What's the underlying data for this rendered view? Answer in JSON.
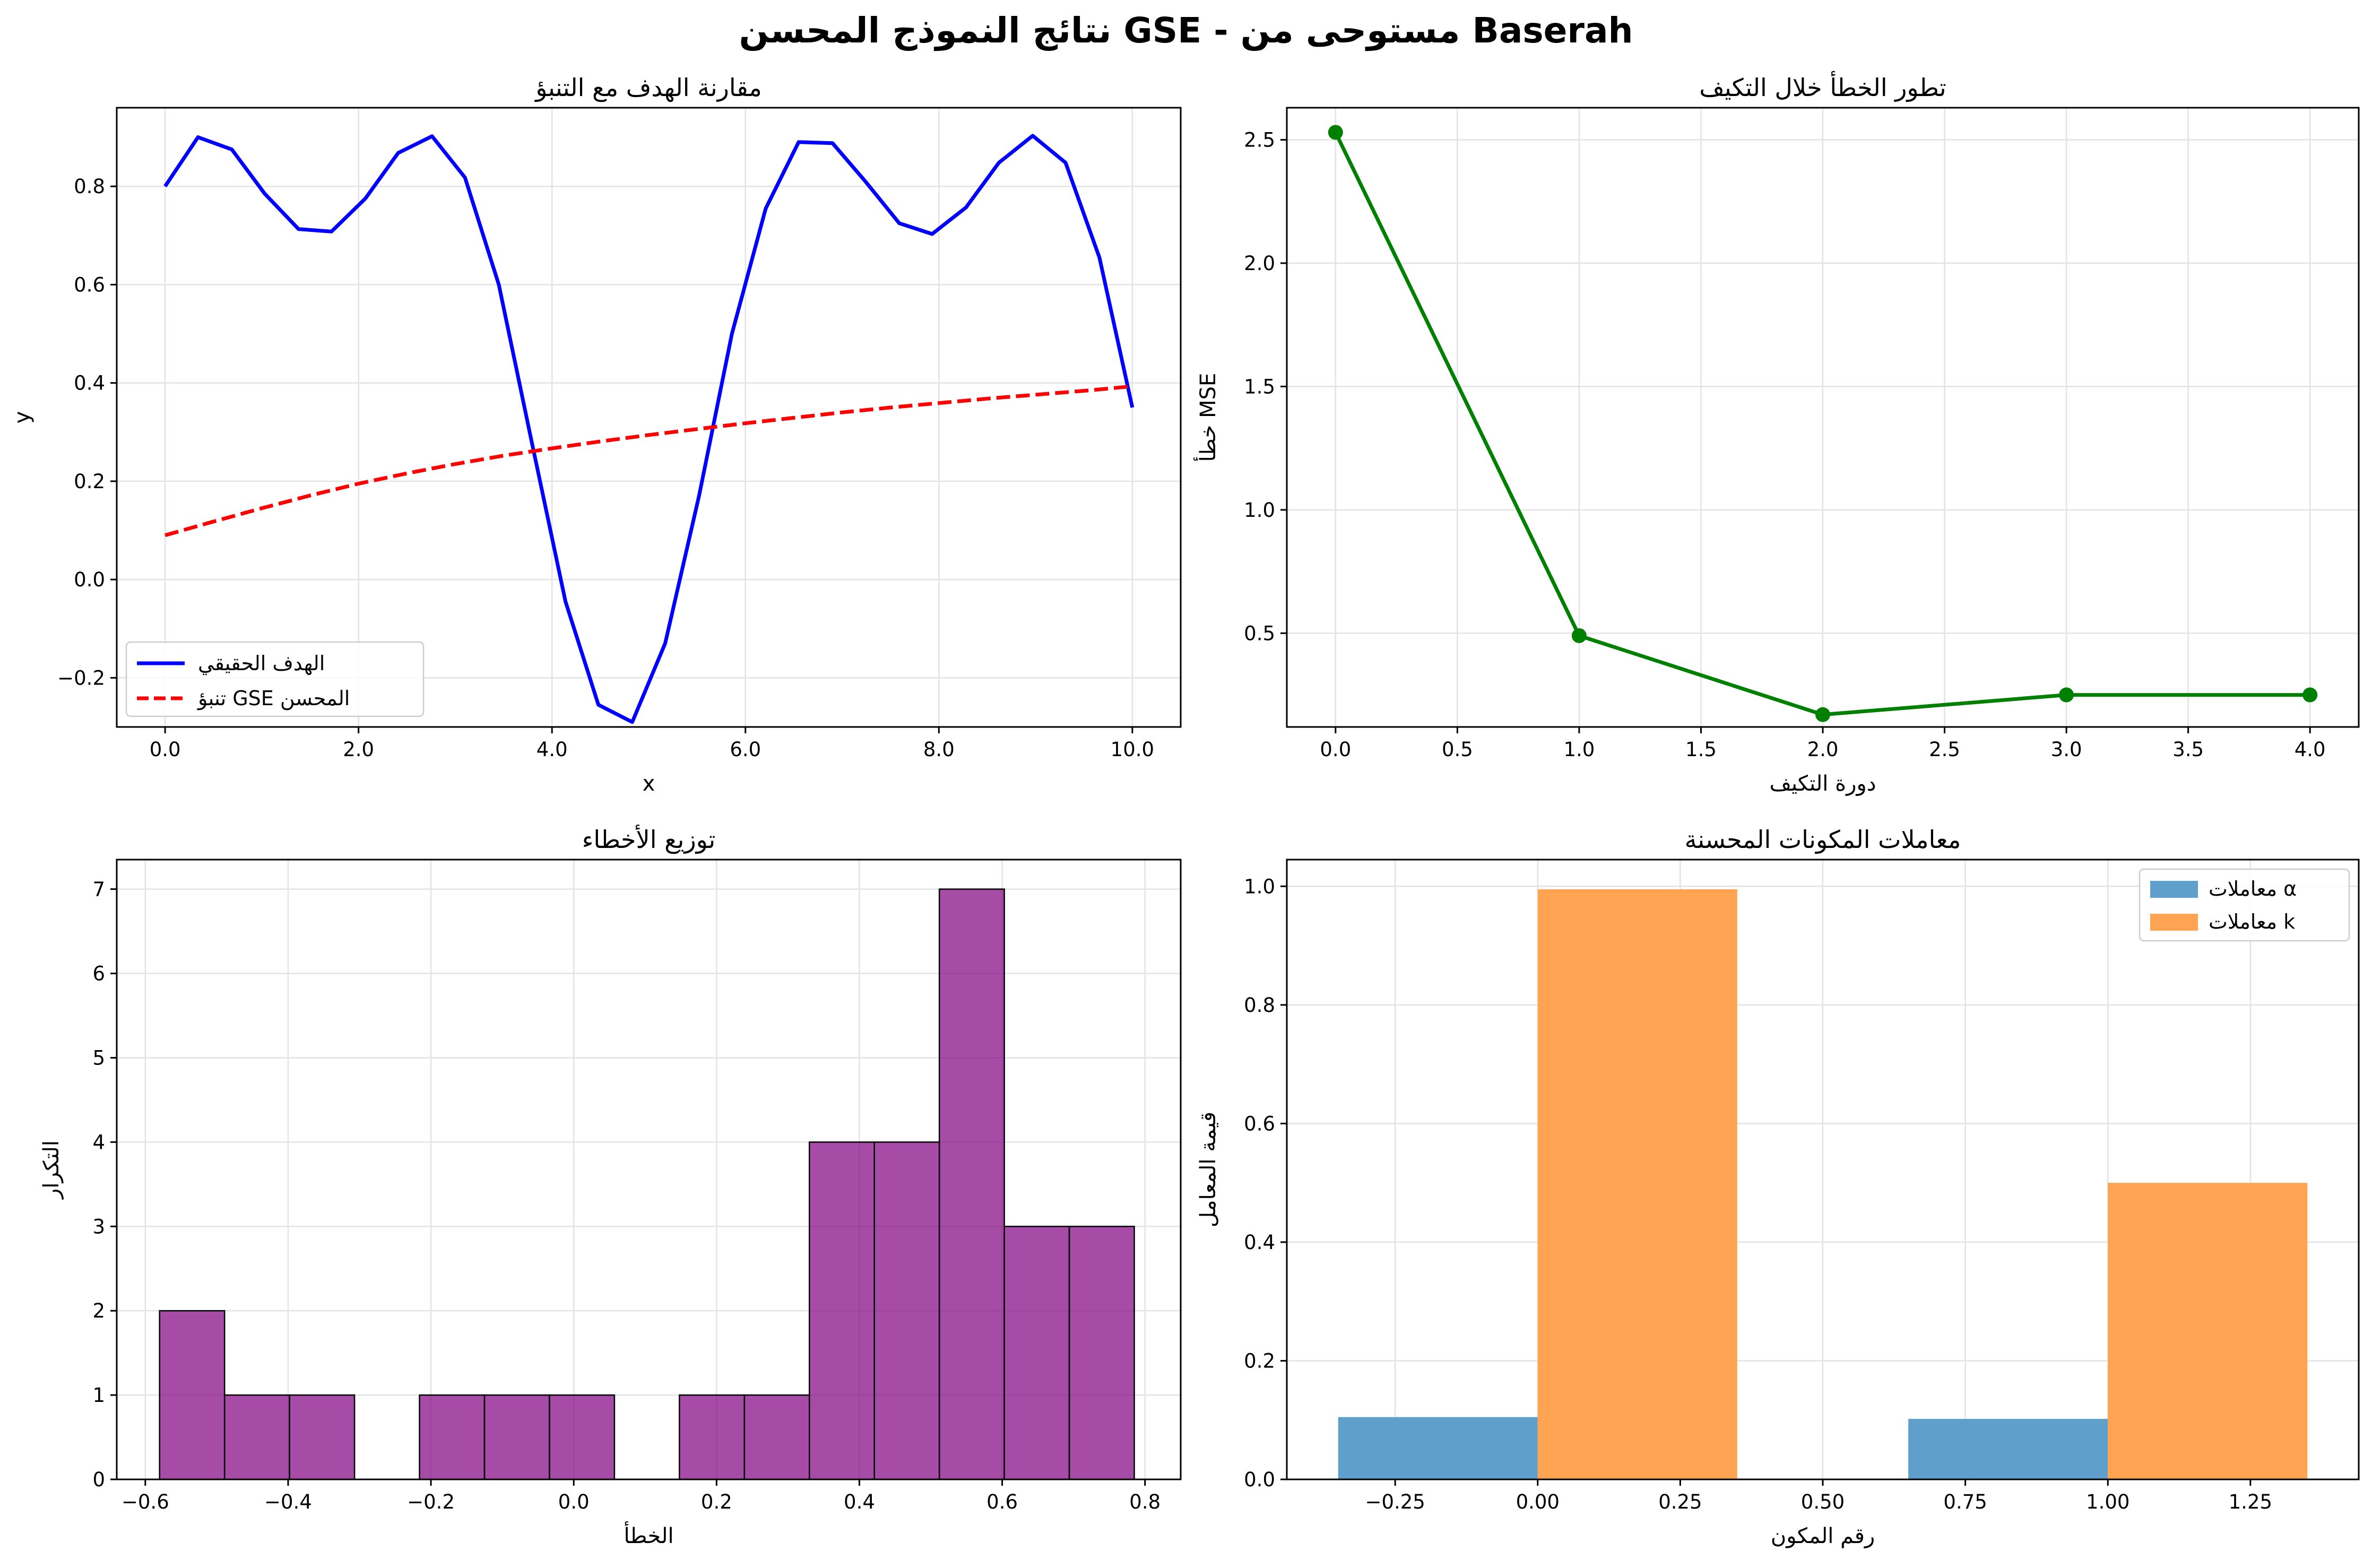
{
  "suptitle": "نتائج النموذج المحسن GSE - مستوحى من Baserah",
  "chart_data": [
    {
      "type": "line",
      "title": "مقارنة الهدف مع التنبؤ",
      "xlabel": "x",
      "ylabel": "y",
      "xlim": [
        -0.5,
        10.5
      ],
      "ylim": [
        -0.3,
        0.96
      ],
      "xticks": [
        0,
        2,
        4,
        6,
        8,
        10
      ],
      "yticks": [
        -0.2,
        0.0,
        0.2,
        0.4,
        0.6,
        0.8
      ],
      "grid": true,
      "legend_position": "bottom-left",
      "series": [
        {
          "name": "الهدف الحقيقي",
          "color": "#0000ff",
          "style": "solid",
          "x": [
            0,
            0.34,
            0.69,
            1.03,
            1.38,
            1.72,
            2.07,
            2.41,
            2.76,
            3.1,
            3.45,
            3.79,
            4.14,
            4.48,
            4.83,
            5.17,
            5.52,
            5.86,
            6.21,
            6.55,
            6.9,
            7.24,
            7.59,
            7.93,
            8.28,
            8.62,
            8.97,
            9.31,
            9.66,
            10.0
          ],
          "y": [
            0.8,
            0.9,
            0.875,
            0.785,
            0.713,
            0.708,
            0.775,
            0.868,
            0.902,
            0.818,
            0.6,
            0.28,
            -0.045,
            -0.255,
            -0.29,
            -0.13,
            0.17,
            0.5,
            0.755,
            0.89,
            0.888,
            0.81,
            0.725,
            0.703,
            0.757,
            0.848,
            0.903,
            0.848,
            0.655,
            0.35
          ]
        },
        {
          "name": "تنبؤ GSE المحسن",
          "color": "#ff0000",
          "style": "dashed",
          "x": [
            0,
            0.5,
            1,
            1.5,
            2,
            2.5,
            3,
            3.5,
            4,
            4.5,
            5,
            5.5,
            6,
            6.5,
            7,
            7.5,
            8,
            8.5,
            9,
            9.5,
            10
          ],
          "y": [
            0.09,
            0.118,
            0.145,
            0.171,
            0.195,
            0.216,
            0.235,
            0.252,
            0.267,
            0.281,
            0.294,
            0.306,
            0.318,
            0.329,
            0.34,
            0.35,
            0.359,
            0.368,
            0.376,
            0.384,
            0.393
          ]
        }
      ]
    },
    {
      "type": "line",
      "title": "تطور الخطأ خلال التكيف",
      "xlabel": "دورة التكيف",
      "ylabel": "خطأ MSE",
      "xlim": [
        -0.2,
        4.2
      ],
      "ylim": [
        0.12,
        2.63
      ],
      "xticks": [
        0.0,
        0.5,
        1.0,
        1.5,
        2.0,
        2.5,
        3.0,
        3.5,
        4.0
      ],
      "yticks": [
        0.5,
        1.0,
        1.5,
        2.0,
        2.5
      ],
      "grid": true,
      "series": [
        {
          "color": "#008000",
          "style": "solid-markers",
          "x": [
            0,
            1,
            2,
            3,
            4
          ],
          "y": [
            2.53,
            0.49,
            0.17,
            0.25,
            0.25
          ]
        }
      ]
    },
    {
      "type": "bar",
      "title": "توزيع الأخطاء",
      "xlabel": "الخطأ",
      "ylabel": "التكرار",
      "xlim": [
        -0.64,
        0.85
      ],
      "ylim": [
        0,
        7.35
      ],
      "xticks": [
        -0.6,
        -0.4,
        -0.2,
        0.0,
        0.2,
        0.4,
        0.6,
        0.8
      ],
      "yticks": [
        0,
        1,
        2,
        3,
        4,
        5,
        6,
        7
      ],
      "grid": true,
      "color": "#800080",
      "bin_edges": [
        -0.58,
        -0.489,
        -0.398,
        -0.307,
        -0.216,
        -0.125,
        -0.034,
        0.057,
        0.148,
        0.239,
        0.33,
        0.421,
        0.512,
        0.603,
        0.694,
        0.785
      ],
      "values": [
        2,
        1,
        1,
        0,
        1,
        1,
        1,
        0,
        1,
        1,
        4,
        4,
        7,
        3,
        3
      ]
    },
    {
      "type": "bar",
      "title": "معاملات المكونات المحسنة",
      "xlabel": "رقم المكون",
      "ylabel": "قيمة المعامل",
      "xlim": [
        -0.44,
        1.44
      ],
      "ylim": [
        0,
        1.045
      ],
      "xticks": [
        -0.25,
        0.0,
        0.25,
        0.5,
        0.75,
        1.0,
        1.25
      ],
      "yticks": [
        0.0,
        0.2,
        0.4,
        0.6,
        0.8,
        1.0
      ],
      "grid": true,
      "legend_position": "top-right",
      "categories": [
        0,
        1
      ],
      "bar_width": 0.35,
      "series": [
        {
          "name": "معاملات α",
          "color": "#5f9fcb",
          "values": [
            0.105,
            0.102
          ]
        },
        {
          "name": "معاملات k",
          "color": "#fea453",
          "values": [
            0.995,
            0.5
          ]
        }
      ]
    }
  ]
}
